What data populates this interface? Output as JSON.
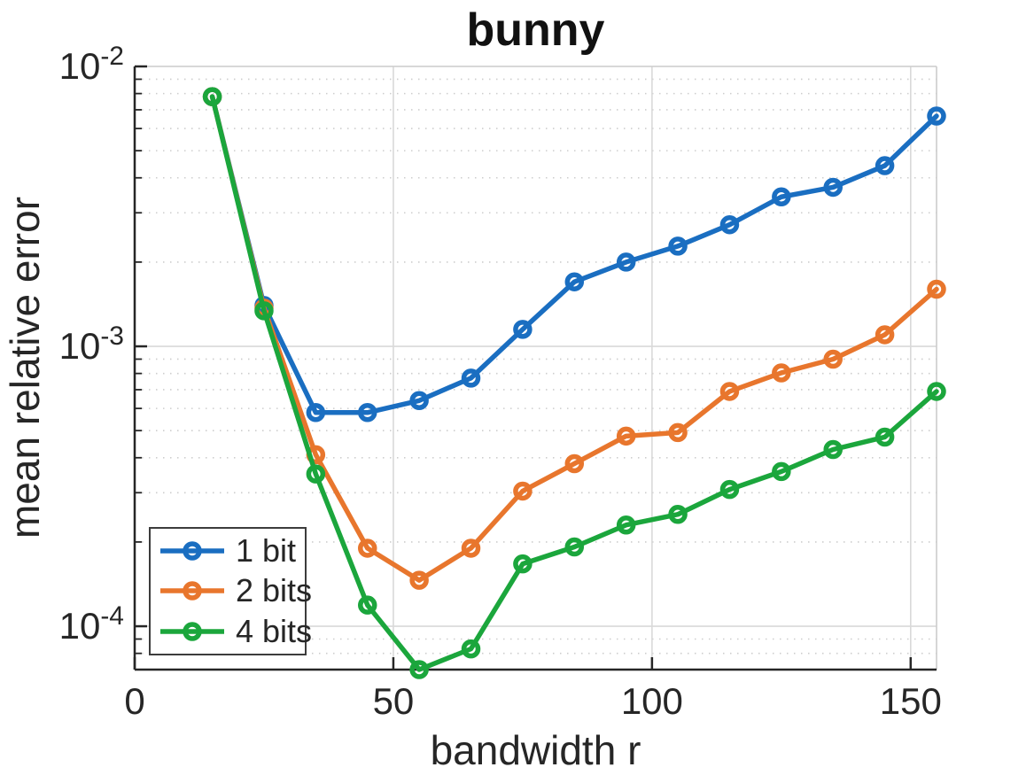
{
  "chart_data": {
    "type": "line",
    "title": "bunny",
    "xlabel": "bandwidth r",
    "ylabel": "mean relative error",
    "x_axis": {
      "label": "bandwidth r",
      "lim": [
        0,
        155
      ],
      "scale": "linear",
      "tick_values": [
        0,
        50,
        100,
        150
      ],
      "tick_labels": [
        "0",
        "50",
        "100",
        "150"
      ]
    },
    "y_axis": {
      "label": "mean relative error",
      "lim": [
        7e-05,
        0.01
      ],
      "scale": "log",
      "tick_base": "10",
      "tick_exponents": [
        "-2",
        "-3",
        "-4"
      ],
      "tick_decade_values": [
        0.01,
        0.001,
        0.0001
      ]
    },
    "grid": {
      "major": true,
      "minor": true
    },
    "legend": {
      "position": "southwest",
      "border": true
    },
    "x": [
      15,
      25,
      35,
      45,
      55,
      65,
      75,
      85,
      95,
      105,
      115,
      125,
      135,
      145,
      155
    ],
    "series": [
      {
        "name": "1 bit",
        "color": "#1a6ec1",
        "marker": "o",
        "values": [
          0.0078,
          0.0014,
          0.00058,
          0.00058,
          0.00064,
          0.00077,
          0.00115,
          0.0017,
          0.002,
          0.00228,
          0.00272,
          0.00342,
          0.0037,
          0.00442,
          0.00665
        ]
      },
      {
        "name": "2 bits",
        "color": "#e8762d",
        "marker": "o",
        "values": [
          0.0078,
          0.00137,
          0.00041,
          0.00019,
          0.000146,
          0.00019,
          0.000304,
          0.000381,
          0.000478,
          0.000492,
          0.00069,
          0.000804,
          0.0009,
          0.0011,
          0.0016
        ]
      },
      {
        "name": "4 bits",
        "color": "#1ba63c",
        "marker": "o",
        "values": [
          0.0078,
          0.00134,
          0.00035,
          0.000119,
          7e-05,
          8.3e-05,
          0.000167,
          0.000192,
          0.00023,
          0.000251,
          0.000308,
          0.000357,
          0.000428,
          0.000474,
          0.00069
        ]
      }
    ],
    "style": {
      "background": "#ffffff",
      "axis_color": "#262626",
      "box_color": "#cccccc",
      "major_grid_color": "#d9d9d9",
      "minor_grid_color": "#cdcdcd",
      "text_color": "#262626",
      "line_width": 5.5,
      "marker_radius": 8
    }
  }
}
